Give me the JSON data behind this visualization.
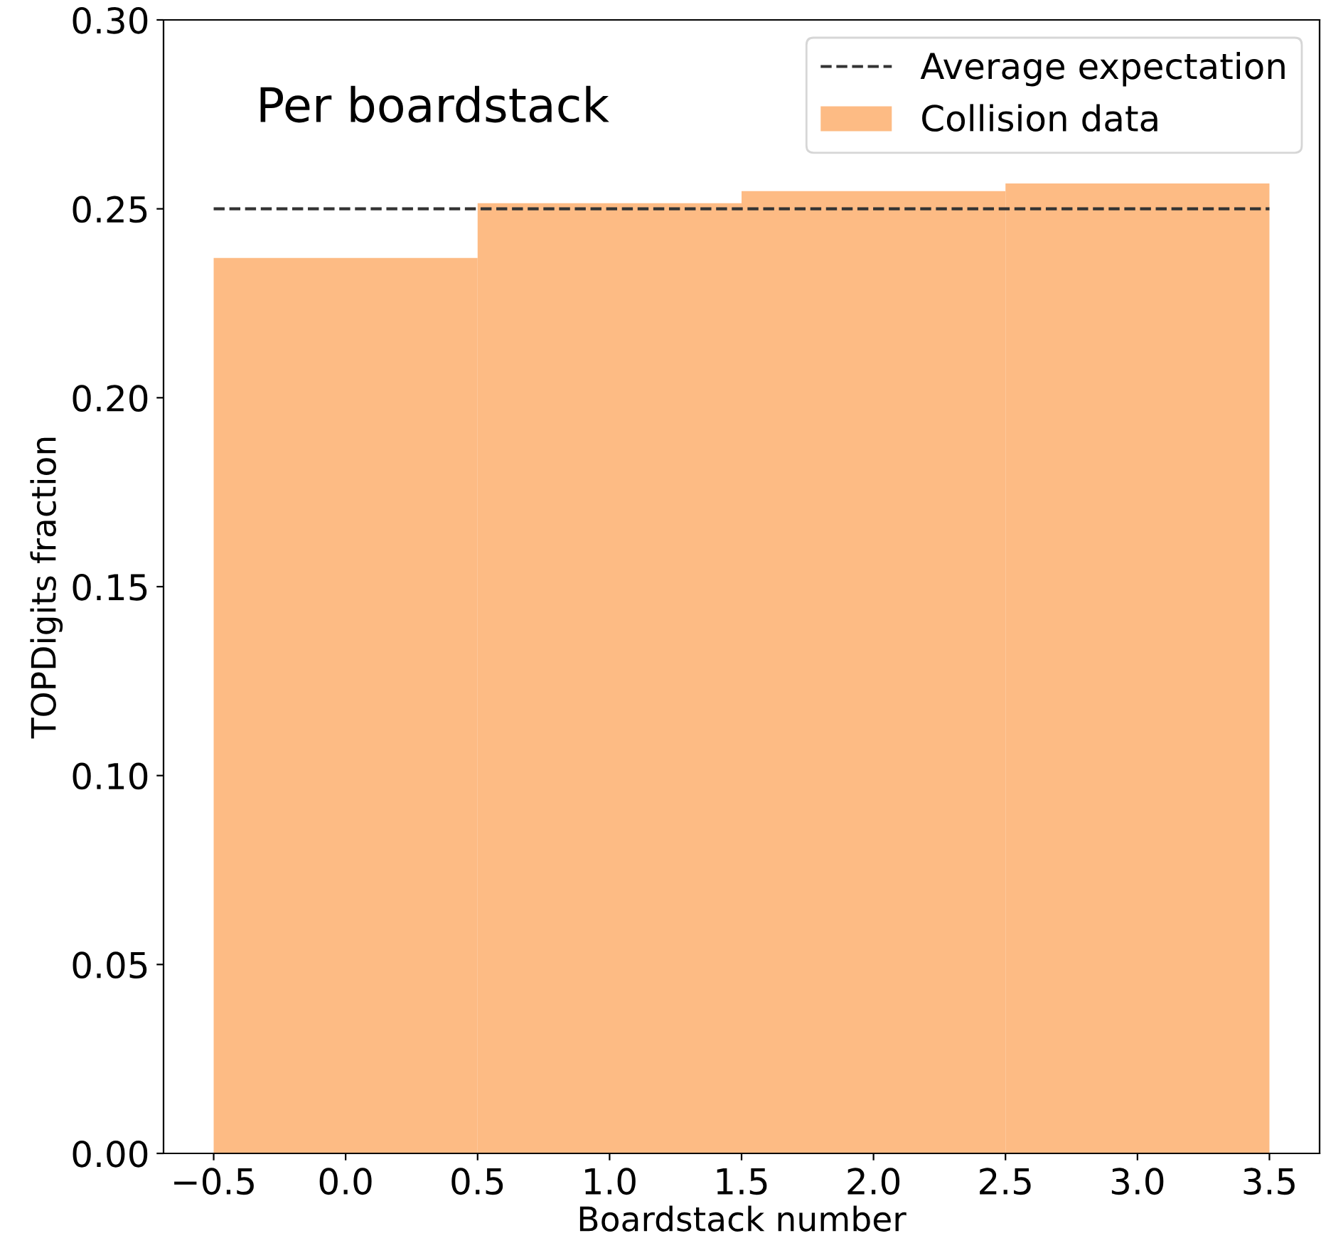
{
  "chart_data": {
    "type": "histogram",
    "xlabel": "Boardstack number",
    "ylabel": "TOPDigits fraction",
    "annotations": [
      "Per boardstack"
    ],
    "bins": [
      -0.5,
      0.5,
      1.5,
      2.5,
      3.5
    ],
    "series": [
      {
        "name": "Collision data",
        "color": "#fdbb84",
        "values": [
          0.237,
          0.2515,
          0.2547,
          0.2567
        ]
      }
    ],
    "ref_lines": [
      {
        "axis": "y",
        "value": 0.25,
        "label": "Average expectation",
        "color": "#333333",
        "line_style": "dashed"
      }
    ],
    "xlim": [
      -0.69,
      3.69
    ],
    "ylim": [
      0,
      0.3
    ],
    "xticks": [
      {
        "value": -0.5,
        "label": "−0.5"
      },
      {
        "value": 0,
        "label": "0.0"
      },
      {
        "value": 0.5,
        "label": "0.5"
      },
      {
        "value": 1,
        "label": "1.0"
      },
      {
        "value": 1.5,
        "label": "1.5"
      },
      {
        "value": 2,
        "label": "2.0"
      },
      {
        "value": 2.5,
        "label": "2.5"
      },
      {
        "value": 3,
        "label": "3.0"
      },
      {
        "value": 3.5,
        "label": "3.5"
      }
    ],
    "yticks": [
      {
        "value": 0,
        "label": "0.00"
      },
      {
        "value": 0.05,
        "label": "0.05"
      },
      {
        "value": 0.1,
        "label": "0.10"
      },
      {
        "value": 0.15,
        "label": "0.15"
      },
      {
        "value": 0.2,
        "label": "0.20"
      },
      {
        "value": 0.25,
        "label": "0.25"
      },
      {
        "value": 0.3,
        "label": "0.30"
      }
    ],
    "legend": "top right",
    "grid": false
  }
}
